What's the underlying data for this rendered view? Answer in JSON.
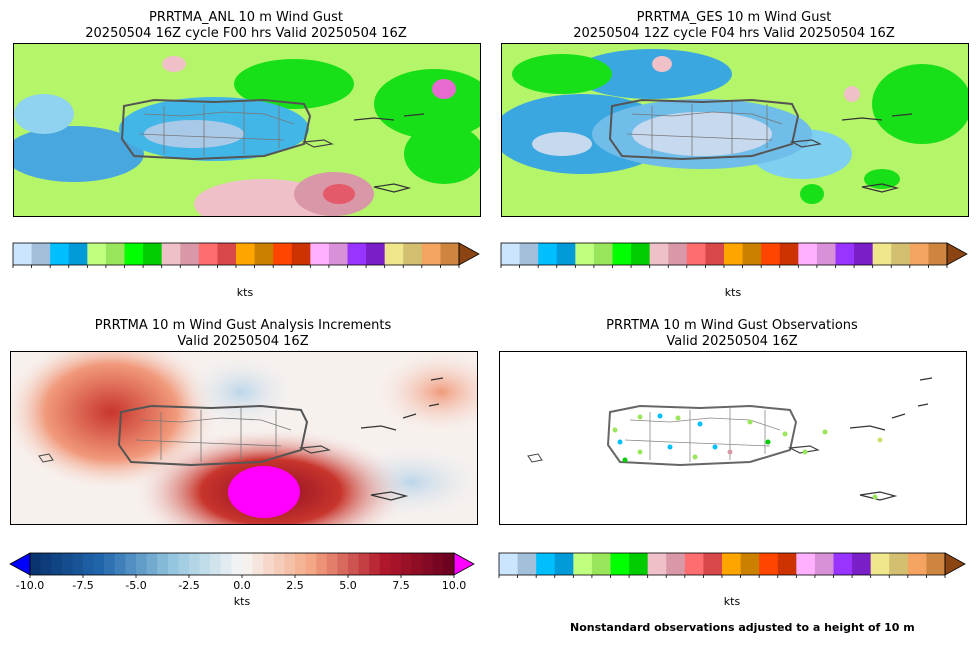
{
  "panels": {
    "anl": {
      "title_line1": "PRRTMA_ANL 10 m Wind Gust",
      "title_line2": "20250504 16Z cycle F00 hrs Valid 20250504 16Z"
    },
    "ges": {
      "title_line1": "PRRTMA_GES 10 m Wind Gust",
      "title_line2": "20250504 12Z cycle F04 hrs Valid 20250504 16Z"
    },
    "inc": {
      "title_line1": "PRRTMA 10 m Wind Gust Analysis Increments",
      "title_line2": "Valid 20250504 16Z"
    },
    "obs": {
      "title_line1": "PRRTMA 10 m Wind Gust Observations",
      "title_line2": "Valid 20250504 16Z"
    }
  },
  "footnote": "Nonstandard observations adjusted to a height of 10 m",
  "chart_data": [
    {
      "type": "heatmap",
      "title": "PRRTMA_ANL 10 m Wind Gust 20250504 16Z cycle F00 hrs Valid 20250504 16Z",
      "colorbar": {
        "label": "kts",
        "ticks": [
          "2",
          "4",
          "6",
          "8",
          "10",
          "12",
          "14",
          "16",
          "18",
          "20",
          "22",
          "24",
          "26",
          "28",
          "30",
          "32",
          "34",
          "36",
          "38",
          "40",
          "42",
          "44",
          "46",
          "48",
          "50"
        ],
        "range": [
          2,
          50
        ],
        "extend": "max"
      }
    },
    {
      "type": "heatmap",
      "title": "PRRTMA_GES 10 m Wind Gust 20250504 12Z cycle F04 hrs Valid 20250504 16Z",
      "colorbar": {
        "label": "kts",
        "ticks": [
          "2",
          "4",
          "6",
          "8",
          "10",
          "12",
          "14",
          "16",
          "18",
          "20",
          "22",
          "24",
          "26",
          "28",
          "30",
          "32",
          "34",
          "36",
          "38",
          "40",
          "42",
          "44",
          "46",
          "48",
          "50"
        ],
        "range": [
          2,
          50
        ],
        "extend": "max"
      }
    },
    {
      "type": "heatmap",
      "title": "PRRTMA 10 m Wind Gust Analysis Increments Valid 20250504 16Z",
      "colorbar": {
        "label": "kts",
        "ticks": [
          "-10.0",
          "-7.5",
          "-5.0",
          "-2.5",
          "0.0",
          "2.5",
          "5.0",
          "7.5",
          "10.0"
        ],
        "range": [
          -10,
          10
        ],
        "extend": "both"
      }
    },
    {
      "type": "scatter",
      "title": "PRRTMA 10 m Wind Gust Observations Valid 20250504 16Z",
      "colorbar": {
        "label": "kts",
        "ticks": [
          "2",
          "4",
          "6",
          "8",
          "10",
          "12",
          "14",
          "16",
          "18",
          "20",
          "22",
          "24",
          "26",
          "28",
          "30",
          "32",
          "34",
          "36",
          "38",
          "40",
          "42",
          "44",
          "46",
          "48",
          "50"
        ],
        "range": [
          2,
          50
        ],
        "extend": "max"
      }
    }
  ],
  "colors": {
    "gust_scale": [
      "#cce5ff",
      "#a3bfd9",
      "#00bfff",
      "#009ad9",
      "#c0ff80",
      "#99e65c",
      "#00ff00",
      "#00cc00",
      "#f0c0c8",
      "#d898a8",
      "#ff6e6e",
      "#d84848",
      "#ffa500",
      "#cc8000",
      "#ff4500",
      "#cc3300",
      "#ffb0ff",
      "#d890d8",
      "#9933ff",
      "#7a1fc8",
      "#f0e68c",
      "#d2c070",
      "#f4a460",
      "#cd853f"
    ],
    "gust_extend": "#8b4513",
    "inc_min": "#0000ff",
    "inc_max": "#ff00ff"
  }
}
